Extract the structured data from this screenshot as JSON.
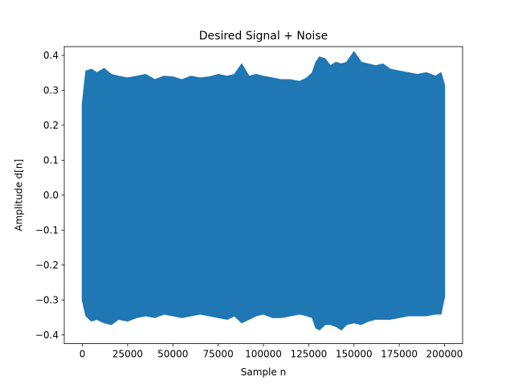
{
  "chart_data": {
    "type": "area",
    "title": "Desired Signal + Noise",
    "xlabel": "Sample n",
    "ylabel": "Amplitude d[n]",
    "xlim": [
      -10000,
      210000
    ],
    "ylim": [
      -0.425,
      0.425
    ],
    "x_ticks": [
      0,
      25000,
      50000,
      75000,
      100000,
      125000,
      150000,
      175000,
      200000
    ],
    "x_tick_labels": [
      "0",
      "25000",
      "50000",
      "75000",
      "100000",
      "125000",
      "150000",
      "175000",
      "200000"
    ],
    "y_ticks": [
      -0.4,
      -0.3,
      -0.2,
      -0.1,
      0.0,
      0.1,
      0.2,
      0.3,
      0.4
    ],
    "y_tick_labels": [
      "−0.4",
      "−0.3",
      "−0.2",
      "−0.1",
      "0.0",
      "0.1",
      "0.2",
      "0.3",
      "0.4"
    ],
    "grid": false,
    "legend": "none",
    "color": "#1f77b4",
    "x_range_data": [
      0,
      200000
    ],
    "envelope": {
      "x": [
        0,
        2000,
        5000,
        8000,
        12000,
        16000,
        20000,
        25000,
        30000,
        35000,
        40000,
        45000,
        50000,
        55000,
        60000,
        65000,
        70000,
        75000,
        80000,
        84000,
        88000,
        92000,
        96000,
        100000,
        105000,
        110000,
        115000,
        120000,
        124000,
        127000,
        129000,
        131000,
        134000,
        137000,
        140000,
        143000,
        146000,
        150000,
        154000,
        158000,
        162000,
        166000,
        170000,
        175000,
        180000,
        185000,
        190000,
        195000,
        198000,
        200000
      ],
      "upper": [
        0.26,
        0.355,
        0.36,
        0.35,
        0.362,
        0.345,
        0.34,
        0.335,
        0.34,
        0.345,
        0.33,
        0.34,
        0.338,
        0.33,
        0.34,
        0.335,
        0.338,
        0.345,
        0.34,
        0.345,
        0.375,
        0.34,
        0.345,
        0.34,
        0.335,
        0.33,
        0.33,
        0.325,
        0.335,
        0.35,
        0.38,
        0.395,
        0.39,
        0.37,
        0.38,
        0.375,
        0.38,
        0.41,
        0.38,
        0.375,
        0.37,
        0.375,
        0.36,
        0.355,
        0.35,
        0.345,
        0.35,
        0.34,
        0.35,
        0.315
      ],
      "lower": [
        -0.3,
        -0.345,
        -0.36,
        -0.355,
        -0.365,
        -0.37,
        -0.355,
        -0.36,
        -0.35,
        -0.345,
        -0.35,
        -0.34,
        -0.345,
        -0.35,
        -0.345,
        -0.34,
        -0.345,
        -0.35,
        -0.355,
        -0.345,
        -0.365,
        -0.355,
        -0.345,
        -0.34,
        -0.35,
        -0.35,
        -0.345,
        -0.34,
        -0.345,
        -0.35,
        -0.38,
        -0.385,
        -0.37,
        -0.37,
        -0.375,
        -0.385,
        -0.37,
        -0.365,
        -0.37,
        -0.36,
        -0.355,
        -0.355,
        -0.355,
        -0.35,
        -0.345,
        -0.345,
        -0.345,
        -0.34,
        -0.34,
        -0.29
      ]
    }
  }
}
